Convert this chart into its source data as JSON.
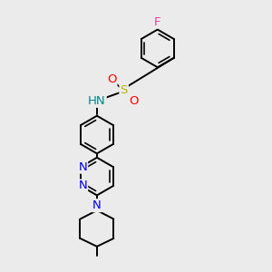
{
  "background_color": "#ebebeb",
  "bond_color": "#000000",
  "bond_width": 1.4,
  "atoms": {
    "F": {
      "color": "#e040a0",
      "fontsize": 9.5
    },
    "O": {
      "color": "#ff0000",
      "fontsize": 9.5
    },
    "S": {
      "color": "#b8b800",
      "fontsize": 9.5
    },
    "N": {
      "color": "#0000ee",
      "fontsize": 9.5
    },
    "NH": {
      "color": "#008888",
      "fontsize": 9.5
    }
  },
  "figsize": [
    3.0,
    3.0
  ],
  "dpi": 100,
  "xlim": [
    0,
    10
  ],
  "ylim": [
    0,
    10
  ]
}
